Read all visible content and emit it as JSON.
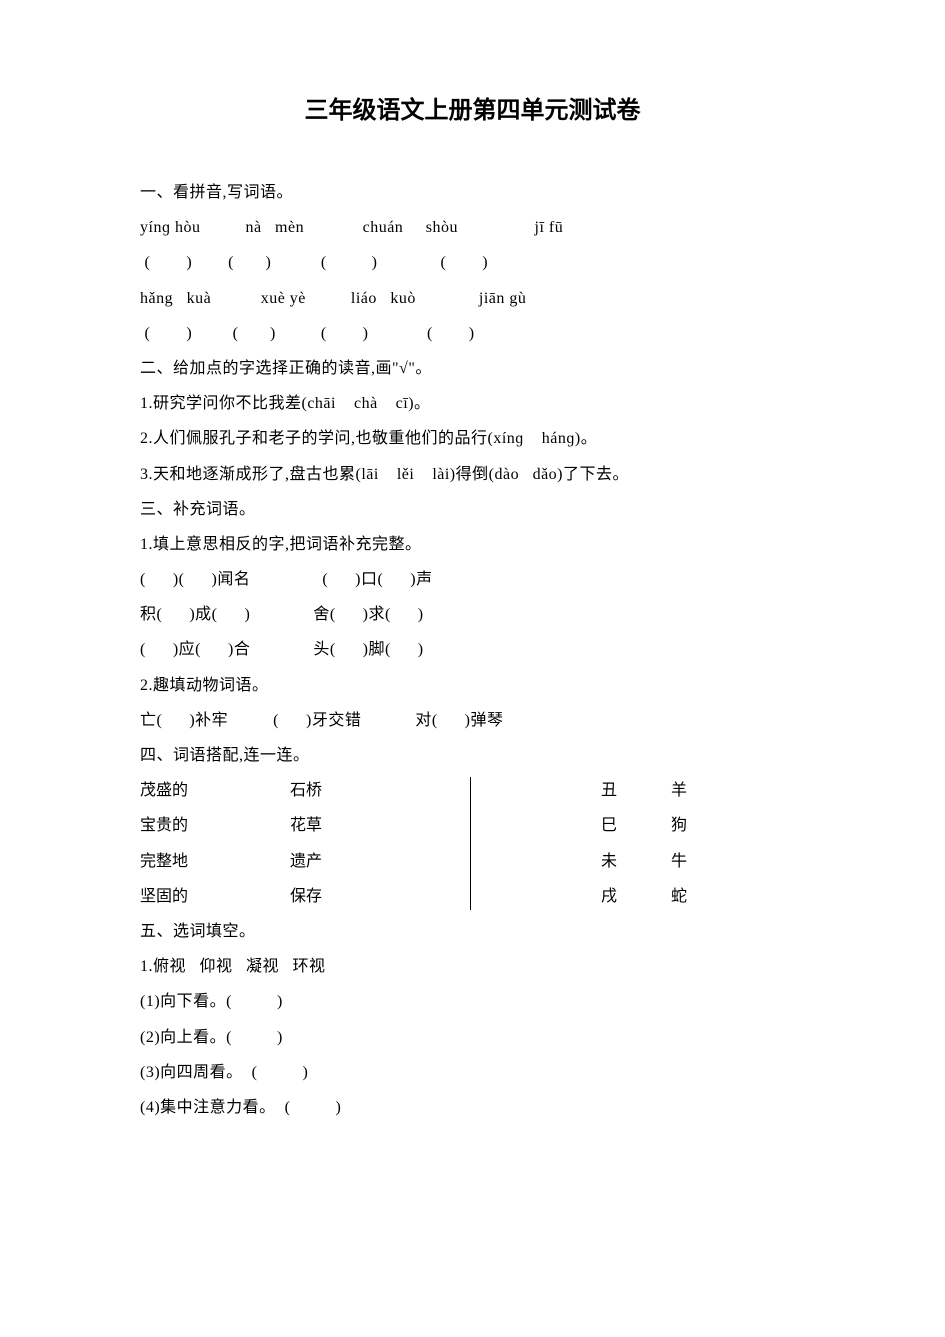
{
  "page": {
    "background_color": "#ffffff",
    "text_color": "#000000",
    "title_fontsize": 24,
    "body_fontsize": 16,
    "line_height": 2.2,
    "title_font": "SimHei",
    "body_font": "SimSun"
  },
  "title": "三年级语文上册第四单元测试卷",
  "section1": {
    "heading": "一、看拼音,写词语。",
    "row1_pinyin": "yínɡ hòu          nà   mèn             chuán     shòu                 jī fū",
    "row1_blank": " (        )        (       )           (          )              (        )",
    "row2_pinyin": "hǎng   kuà           xuè yè          liáo   kuò              jiān gù",
    "row2_blank": " (        )         (       )          (        )             (        )"
  },
  "section2": {
    "heading": "二、给加点的字选择正确的读音,画\"√\"。",
    "item1": "1.研究学问你不比我差(chāi    chà    cī)。",
    "item2": "2.人们佩服孔子和老子的学问,也敬重他们的品行(xínɡ    hánɡ)。",
    "item3": "3.天和地逐渐成形了,盘古也累(lāi    lěi    lài)得倒(dào   dǎo)了下去。"
  },
  "section3": {
    "heading": "三、补充词语。",
    "sub1": "1.填上意思相反的字,把词语补充完整。",
    "s1_line1": "(      )(      )闻名                (      )口(      )声",
    "s1_line2": "积(      )成(      )              舍(      )求(      )",
    "s1_line3": "(      )应(      )合              头(      )脚(      )",
    "sub2": "2.趣填动物词语。",
    "s2_line1": "亡(      )补牢          (      )牙交错            对(      )弹琴"
  },
  "section4": {
    "heading": "四、词语搭配,连一连。",
    "left": [
      {
        "a": "茂盛的",
        "b": "石桥"
      },
      {
        "a": "宝贵的",
        "b": "花草"
      },
      {
        "a": "完整地",
        "b": "遗产"
      },
      {
        "a": "坚固的",
        "b": "保存"
      }
    ],
    "right": [
      {
        "a": "丑",
        "b": "羊"
      },
      {
        "a": "巳",
        "b": "狗"
      },
      {
        "a": "未",
        "b": "牛"
      },
      {
        "a": "戌",
        "b": "蛇"
      }
    ]
  },
  "section5": {
    "heading": "五、选词填空。",
    "sub1": "1.俯视   仰视   凝视   环视",
    "item1": "(1)向下看。(          )",
    "item2": "(2)向上看。(          )",
    "item3": "(3)向四周看。  (          )",
    "item4": "(4)集中注意力看。  (          )"
  }
}
